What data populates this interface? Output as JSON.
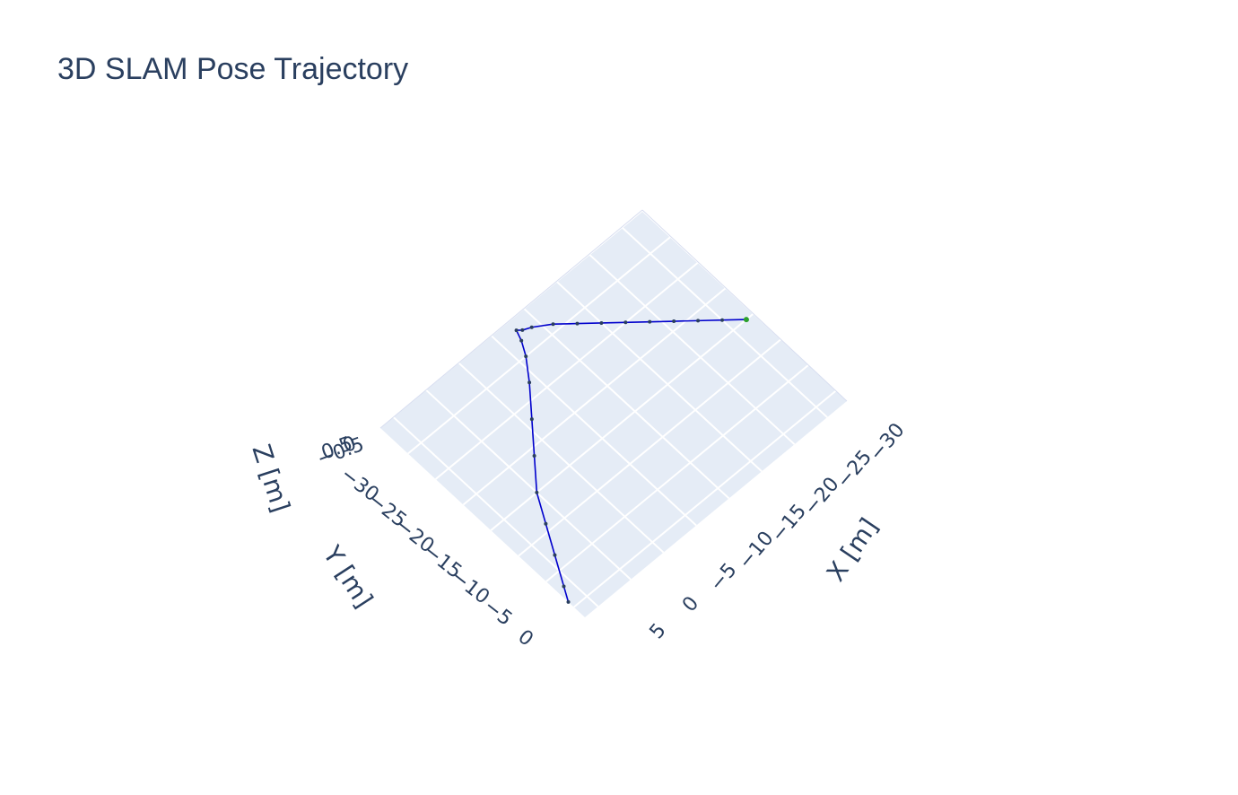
{
  "chart_data": {
    "type": "line3d",
    "title": "3D SLAM Pose Trajectory",
    "xlabel": "X [m]",
    "ylabel": "Y [m]",
    "zlabel": "Z [m]",
    "xlim": [
      -33,
      7
    ],
    "ylim": [
      -35,
      2
    ],
    "x_ticks": [
      {
        "value": 5,
        "label": "5"
      },
      {
        "value": 0,
        "label": "0"
      },
      {
        "value": -5,
        "label": "−5"
      },
      {
        "value": -10,
        "label": "−10"
      },
      {
        "value": -15,
        "label": "−15"
      },
      {
        "value": -20,
        "label": "−20"
      },
      {
        "value": -25,
        "label": "−25"
      },
      {
        "value": -30,
        "label": "−30"
      }
    ],
    "y_ticks": [
      {
        "value": 0,
        "label": "0"
      },
      {
        "value": -5,
        "label": "−5"
      },
      {
        "value": -10,
        "label": "−10"
      },
      {
        "value": -15,
        "label": "−15"
      },
      {
        "value": -20,
        "label": "−20"
      },
      {
        "value": -25,
        "label": "−25"
      },
      {
        "value": -30,
        "label": "−30"
      }
    ],
    "z_tick_labels": [
      "0.5",
      "−0.5",
      "0"
    ],
    "grid": true,
    "background_color": "#e5ecf6",
    "line_color": "#0000cc",
    "marker_color": "#2a3f5f",
    "start_marker_color": "#2ca02c",
    "series": [
      {
        "x": [
          7,
          6,
          4,
          2,
          0,
          -3,
          -6,
          -9,
          -11,
          -12,
          -12.5,
          -13,
          -14,
          -16,
          -18,
          -20,
          -22,
          -24,
          -26,
          -28,
          -30,
          -32
        ],
        "y": [
          -1,
          -3,
          -7,
          -11,
          -15,
          -19,
          -23,
          -27,
          -30,
          -32,
          -33.5,
          -33,
          -32.5,
          -31,
          -29,
          -27,
          -25,
          -23,
          -21,
          -19,
          -17,
          -15
        ],
        "z": [
          0,
          0,
          0,
          0,
          0,
          0,
          0,
          0,
          0,
          0,
          0,
          0,
          0,
          0,
          0,
          0,
          0,
          0,
          0,
          0,
          0,
          0
        ]
      }
    ]
  }
}
